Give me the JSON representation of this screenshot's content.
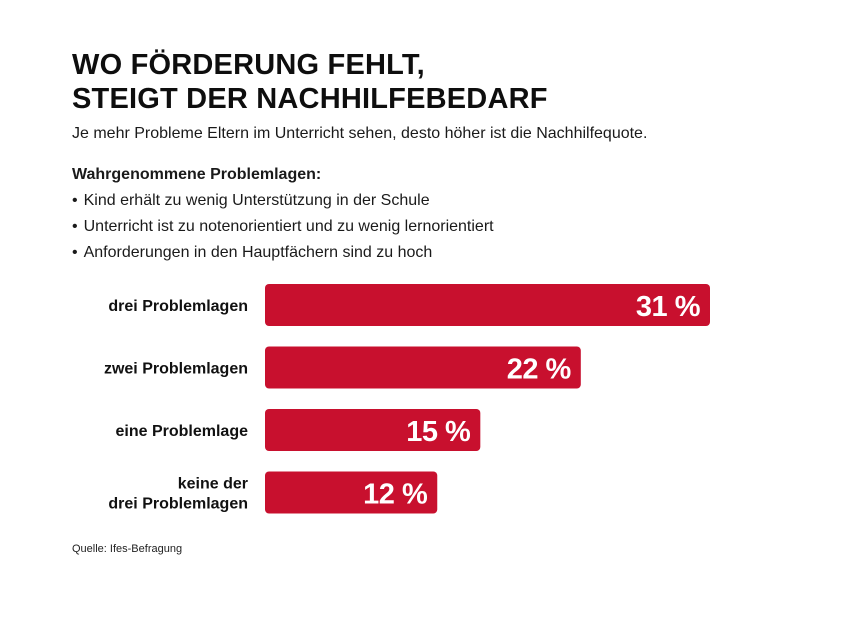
{
  "title_line1": "WO FÖRDERUNG FEHLT,",
  "title_line2": "STEIGT DER NACHHILFEBEDARF",
  "subtitle": "Je mehr Probleme Eltern im Unterricht sehen, desto höher ist die Nachhilfequote.",
  "problems": {
    "heading": "Wahrgenommene Problemlagen:",
    "items": [
      "Kind erhält zu wenig Unterstützung in der Schule",
      "Unterricht ist zu notenorientiert und zu wenig lernorientiert",
      "Anforderungen in den Hauptfächern sind zu hoch"
    ]
  },
  "source": "Quelle: Ifes-Befragung",
  "colors": {
    "bar": "#c8102e",
    "bar_label": "#ffffff",
    "category_label": "#111111"
  },
  "chart_data": {
    "type": "bar",
    "orientation": "horizontal",
    "categories": [
      [
        "drei Problemlagen"
      ],
      [
        "zwei Problemlagen"
      ],
      [
        "eine Problemlage"
      ],
      [
        "keine der",
        "drei Problemlagen"
      ]
    ],
    "values": [
      31,
      22,
      15,
      12
    ],
    "value_labels": [
      "31 %",
      "22 %",
      "15 %",
      "12 %"
    ],
    "unit": "%",
    "xlim": [
      0,
      31
    ],
    "grid": false
  }
}
